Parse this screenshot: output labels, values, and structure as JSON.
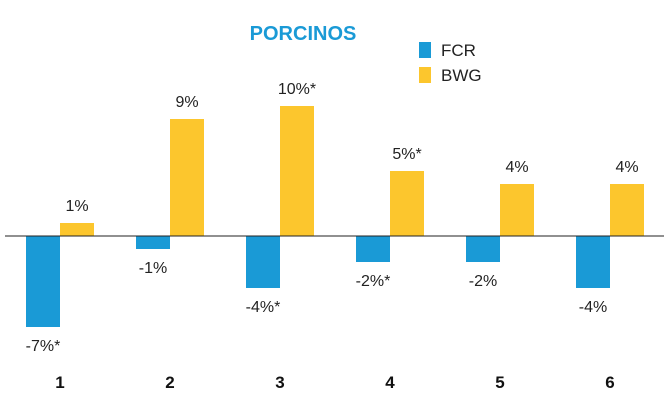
{
  "chart_data": {
    "type": "bar",
    "title": "PORCINOS",
    "xlabel": "",
    "ylabel": "",
    "categories": [
      "1",
      "2",
      "3",
      "4",
      "5",
      "6"
    ],
    "ylim": [
      -8,
      11
    ],
    "grid": false,
    "legend": "top-center",
    "series": [
      {
        "name": "FCR",
        "color": "#1a9ad6",
        "values": [
          -7,
          -1,
          -4,
          -2,
          -2,
          -4
        ],
        "labels": [
          "-7%*",
          "-1%",
          "-4%*",
          "-2%*",
          "-2%",
          "-4%"
        ]
      },
      {
        "name": "BWG",
        "color": "#fcc62d",
        "values": [
          1,
          9,
          10,
          5,
          4,
          4
        ],
        "labels": [
          "1%",
          "9%",
          "10%*",
          "5%*",
          "4%",
          "4%"
        ]
      }
    ],
    "title_color": "#1a9ad6"
  }
}
